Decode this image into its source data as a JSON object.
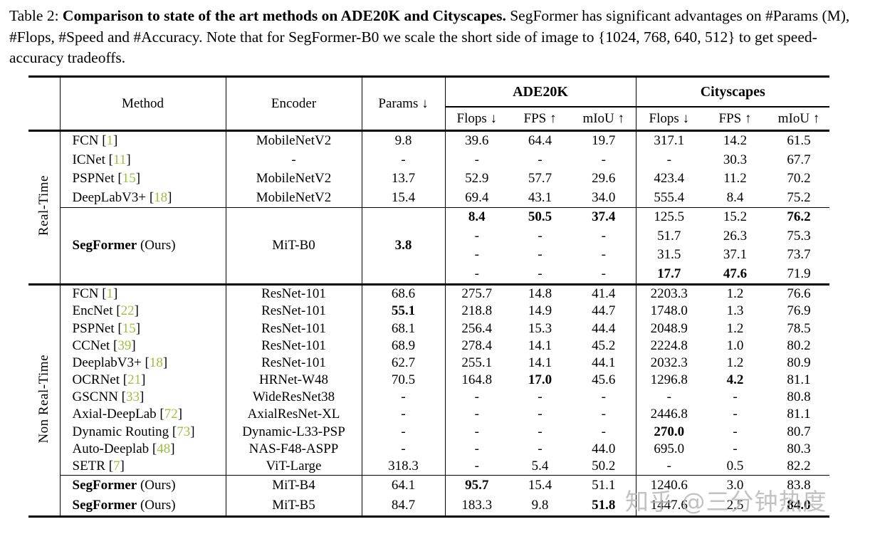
{
  "caption": {
    "prefix": "Table 2:",
    "bold": "Comparison to state of the art methods on ADE20K and Cityscapes.",
    "rest": "SegFormer has significant advantages on #Params (M), #Flops, #Speed and #Accuracy. Note that for SegFormer-B0 we scale the short side of image to {1024, 768, 640, 512} to get speed-accuracy tradeoffs."
  },
  "watermark": "知乎 @三分钟热度",
  "colors": {
    "citation_green": "#9cbf3f",
    "watermark_gray": "#b5b5b5"
  },
  "table": {
    "header": {
      "method": "Method",
      "encoder": "Encoder",
      "params": "Params ↓",
      "groups": [
        {
          "name": "ADE20K",
          "cols": [
            "Flops ↓",
            "FPS ↑",
            "mIoU ↑"
          ]
        },
        {
          "name": "Cityscapes",
          "cols": [
            "Flops ↓",
            "FPS ↑",
            "mIoU ↑"
          ]
        }
      ]
    },
    "sections": [
      {
        "label": "Real-Time",
        "blocks": [
          {
            "rows": [
              {
                "method": {
                  "name": "FCN",
                  "cite": "1"
                },
                "encoder": "MobileNetV2",
                "params": "9.8",
                "ade": [
                  "39.6",
                  "64.4",
                  "19.7"
                ],
                "city": [
                  "317.1",
                  "14.2",
                  "61.5"
                ]
              },
              {
                "method": {
                  "name": "ICNet",
                  "cite": "11"
                },
                "encoder": "-",
                "params": "-",
                "ade": [
                  "-",
                  "-",
                  "-"
                ],
                "city": [
                  "-",
                  "30.3",
                  "67.7"
                ]
              },
              {
                "method": {
                  "name": "PSPNet",
                  "cite": "15"
                },
                "encoder": "MobileNetV2",
                "params": "13.7",
                "ade": [
                  "52.9",
                  "57.7",
                  "29.6"
                ],
                "city": [
                  "423.4",
                  "11.2",
                  "70.2"
                ]
              },
              {
                "method": {
                  "name": "DeepLabV3+",
                  "cite": "18"
                },
                "encoder": "MobileNetV2",
                "params": "15.4",
                "ade": [
                  "69.4",
                  "43.1",
                  "34.0"
                ],
                "city": [
                  "555.4",
                  "8.4",
                  "75.2"
                ]
              }
            ]
          },
          {
            "merged": {
              "method": {
                "name": "SegFormer",
                "ours": " (Ours)"
              },
              "encoder": "MiT-B0",
              "params": {
                "v": "3.8",
                "b": true
              }
            },
            "rows": [
              {
                "ade": [
                  {
                    "v": "8.4",
                    "b": true
                  },
                  {
                    "v": "50.5",
                    "b": true
                  },
                  {
                    "v": "37.4",
                    "b": true
                  }
                ],
                "city": [
                  "125.5",
                  "15.2",
                  {
                    "v": "76.2",
                    "b": true
                  }
                ]
              },
              {
                "ade": [
                  "-",
                  "-",
                  "-"
                ],
                "city": [
                  "51.7",
                  "26.3",
                  "75.3"
                ]
              },
              {
                "ade": [
                  "-",
                  "-",
                  "-"
                ],
                "city": [
                  "31.5",
                  "37.1",
                  "73.7"
                ]
              },
              {
                "ade": [
                  "-",
                  "-",
                  "-"
                ],
                "city": [
                  {
                    "v": "17.7",
                    "b": true
                  },
                  {
                    "v": "47.6",
                    "b": true
                  },
                  "71.9"
                ]
              }
            ]
          }
        ]
      },
      {
        "label": "Non Real-Time",
        "blocks": [
          {
            "rows": [
              {
                "method": {
                  "name": "FCN",
                  "cite": "1"
                },
                "encoder": "ResNet-101",
                "params": "68.6",
                "ade": [
                  "275.7",
                  "14.8",
                  "41.4"
                ],
                "city": [
                  "2203.3",
                  "1.2",
                  "76.6"
                ]
              },
              {
                "method": {
                  "name": "EncNet",
                  "cite": "22"
                },
                "encoder": "ResNet-101",
                "params": {
                  "v": "55.1",
                  "b": true
                },
                "ade": [
                  "218.8",
                  "14.9",
                  "44.7"
                ],
                "city": [
                  "1748.0",
                  "1.3",
                  "76.9"
                ]
              },
              {
                "method": {
                  "name": "PSPNet",
                  "cite": "15"
                },
                "encoder": "ResNet-101",
                "params": "68.1",
                "ade": [
                  "256.4",
                  "15.3",
                  "44.4"
                ],
                "city": [
                  "2048.9",
                  "1.2",
                  "78.5"
                ]
              },
              {
                "method": {
                  "name": "CCNet",
                  "cite": "39"
                },
                "encoder": "ResNet-101",
                "params": "68.9",
                "ade": [
                  "278.4",
                  "14.1",
                  "45.2"
                ],
                "city": [
                  "2224.8",
                  "1.0",
                  "80.2"
                ]
              },
              {
                "method": {
                  "name": "DeeplabV3+",
                  "cite": "18"
                },
                "encoder": "ResNet-101",
                "params": "62.7",
                "ade": [
                  "255.1",
                  "14.1",
                  "44.1"
                ],
                "city": [
                  "2032.3",
                  "1.2",
                  "80.9"
                ]
              },
              {
                "method": {
                  "name": "OCRNet",
                  "cite": "21"
                },
                "encoder": "HRNet-W48",
                "params": "70.5",
                "ade": [
                  "164.8",
                  {
                    "v": "17.0",
                    "b": true
                  },
                  "45.6"
                ],
                "city": [
                  "1296.8",
                  {
                    "v": "4.2",
                    "b": true
                  },
                  "81.1"
                ]
              },
              {
                "method": {
                  "name": "GSCNN",
                  "cite": "33"
                },
                "encoder": "WideResNet38",
                "params": "-",
                "ade": [
                  "-",
                  "-",
                  "-"
                ],
                "city": [
                  "-",
                  "-",
                  "80.8"
                ]
              },
              {
                "method": {
                  "name": "Axial-DeepLab",
                  "cite": "72"
                },
                "encoder": "AxialResNet-XL",
                "params": "-",
                "ade": [
                  "-",
                  "-",
                  "-"
                ],
                "city": [
                  "2446.8",
                  "-",
                  "81.1"
                ]
              },
              {
                "method": {
                  "name": "Dynamic Routing",
                  "cite": "73"
                },
                "encoder": "Dynamic-L33-PSP",
                "params": "-",
                "ade": [
                  "-",
                  "-",
                  "-"
                ],
                "city": [
                  {
                    "v": "270.0",
                    "b": true
                  },
                  "-",
                  "80.7"
                ]
              },
              {
                "method": {
                  "name": "Auto-Deeplab",
                  "cite": "48"
                },
                "encoder": "NAS-F48-ASPP",
                "params": "-",
                "ade": [
                  "-",
                  "-",
                  "44.0"
                ],
                "city": [
                  "695.0",
                  "-",
                  "80.3"
                ]
              },
              {
                "method": {
                  "name": "SETR",
                  "cite": "7"
                },
                "encoder": "ViT-Large",
                "params": "318.3",
                "ade": [
                  "-",
                  "5.4",
                  "50.2"
                ],
                "city": [
                  "-",
                  "0.5",
                  "82.2"
                ]
              }
            ]
          },
          {
            "rows": [
              {
                "method": {
                  "name": "SegFormer",
                  "ours": " (Ours)"
                },
                "encoder": "MiT-B4",
                "params": "64.1",
                "ade": [
                  {
                    "v": "95.7",
                    "b": true
                  },
                  "15.4",
                  "51.1"
                ],
                "city": [
                  "1240.6",
                  "3.0",
                  "83.8"
                ]
              },
              {
                "method": {
                  "name": "SegFormer",
                  "ours": " (Ours)"
                },
                "encoder": "MiT-B5",
                "params": "84.7",
                "ade": [
                  "183.3",
                  "9.8",
                  {
                    "v": "51.8",
                    "b": true
                  }
                ],
                "city": [
                  "1447.6",
                  "2.5",
                  {
                    "v": "84.0",
                    "b": true
                  }
                ]
              }
            ]
          }
        ]
      }
    ]
  }
}
